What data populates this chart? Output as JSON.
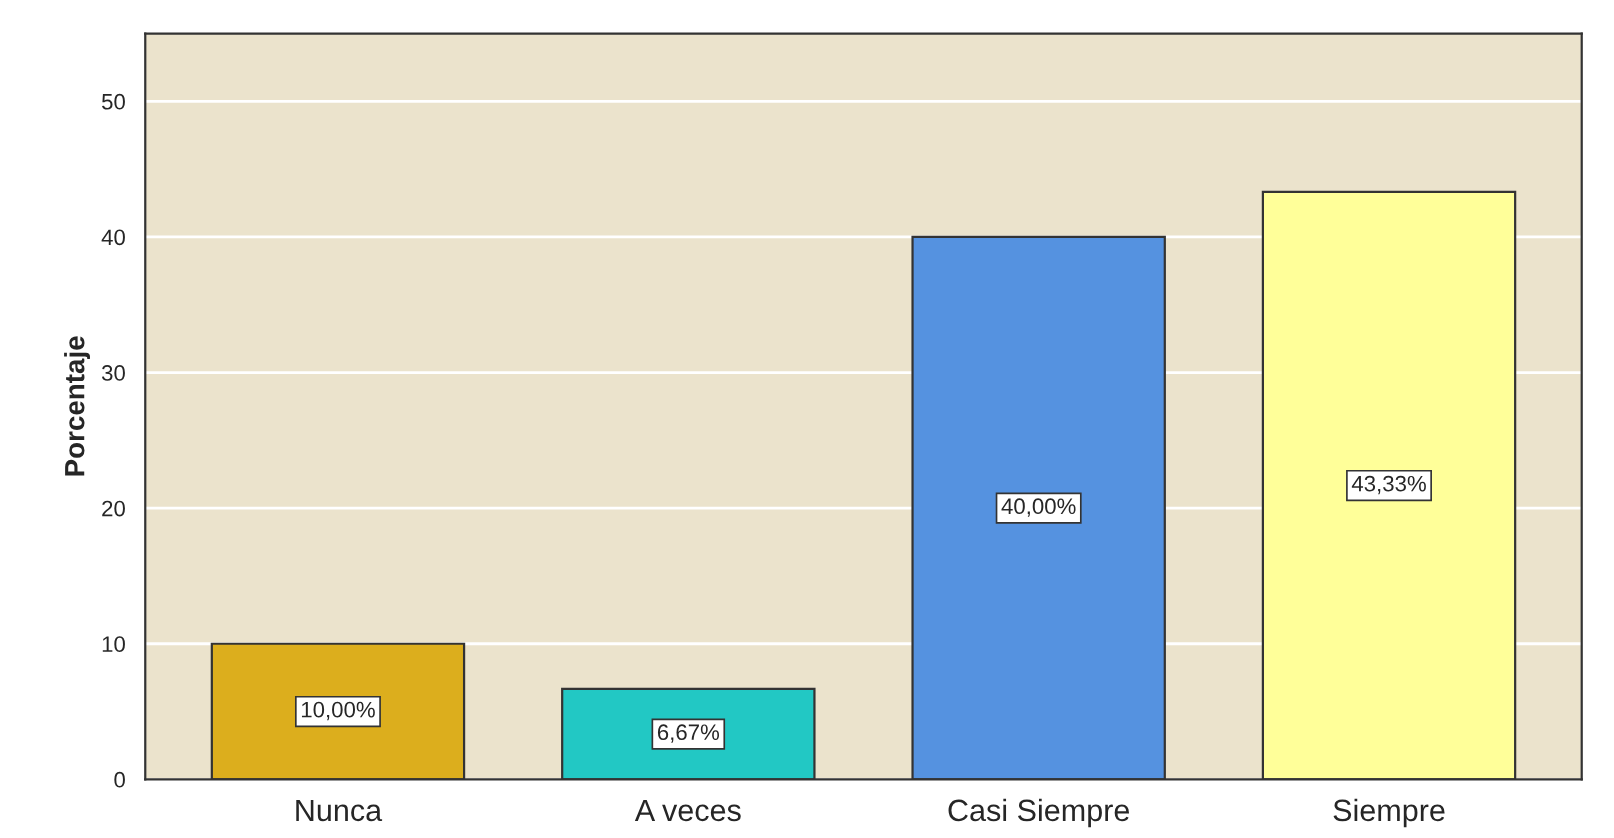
{
  "chart_data": {
    "type": "bar",
    "ylabel": "Porcentaje",
    "categories": [
      "Nunca",
      "A veces",
      "Casi Siempre",
      "Siempre"
    ],
    "values": [
      10.0,
      6.67,
      40.0,
      43.33
    ],
    "colors": [
      "#dcae1d",
      "#22c8c4",
      "#5592e0",
      "#ffff99"
    ],
    "value_labels": [
      "10,00%",
      "6,67%",
      "40,00%",
      "43,33%"
    ],
    "ylim": [
      0,
      55
    ],
    "yticks": [
      0,
      10,
      20,
      30,
      40,
      50
    ],
    "grid": "y",
    "legend": false
  }
}
